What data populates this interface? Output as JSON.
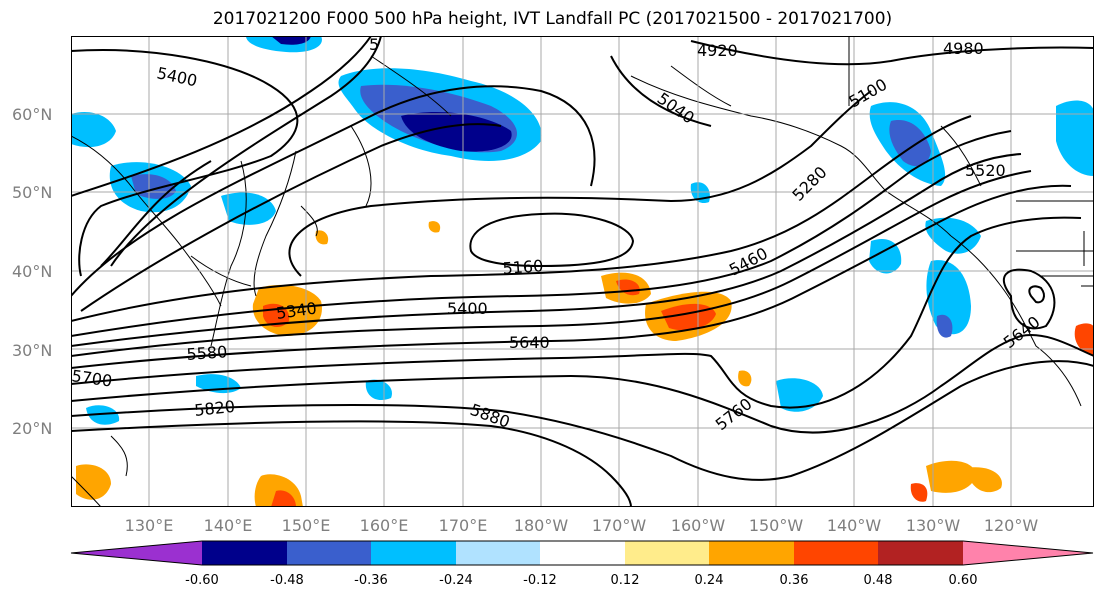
{
  "title": "2017021200 F000 500 hPa height, IVT Landfall PC (2017021500 - 2017021700)",
  "lat_labels": [
    "60°N",
    "50°N",
    "40°N",
    "30°N",
    "20°N"
  ],
  "lon_labels": [
    "130°E",
    "140°E",
    "150°E",
    "160°E",
    "170°E",
    "180°W",
    "170°W",
    "160°W",
    "150°W",
    "140°W",
    "130°W",
    "120°W"
  ],
  "contour_labels": [
    "5400",
    "4920",
    "4980",
    "5040",
    "5100",
    "5280",
    "5520",
    "5160",
    "5460",
    "5340",
    "5400",
    "5580",
    "5640",
    "5700",
    "5820",
    "5880",
    "5760",
    "5640",
    "5"
  ],
  "colorbar": {
    "colors": [
      "#9b30d0",
      "#00008b",
      "#3a5fcd",
      "#00bfff",
      "#b0e2ff",
      "#ffffff",
      "#ffec8b",
      "#ffa500",
      "#ff4500",
      "#b22222",
      "#ff82ab"
    ],
    "tick_labels": [
      "-0.60",
      "-0.48",
      "-0.36",
      "-0.24",
      "-0.12",
      "0.12",
      "0.24",
      "0.36",
      "0.48",
      "0.60"
    ]
  }
}
